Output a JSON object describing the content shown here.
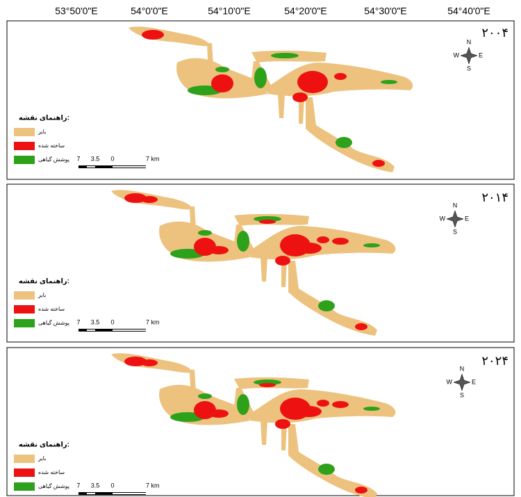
{
  "coordinates": [
    "53°50'0\"E",
    "54°0'0\"E",
    "54°10'0\"E",
    "54°20'0\"E",
    "54°30'0\"E",
    "54°40'0\"E"
  ],
  "panels": [
    {
      "year": "۲۰۰۴"
    },
    {
      "year": "۲۰۱۴"
    },
    {
      "year": "۲۰۲۴"
    }
  ],
  "legend": {
    "title": "راهنمای نقشه:",
    "items": [
      "بایر",
      "ساخته شده",
      "پوشش گیاهی"
    ]
  },
  "scale_bar": {
    "labels": [
      "7",
      "3.5",
      "0",
      "7 km"
    ]
  },
  "compass": {
    "north": "N",
    "west": "W",
    "east": "E",
    "south": "S"
  }
}
